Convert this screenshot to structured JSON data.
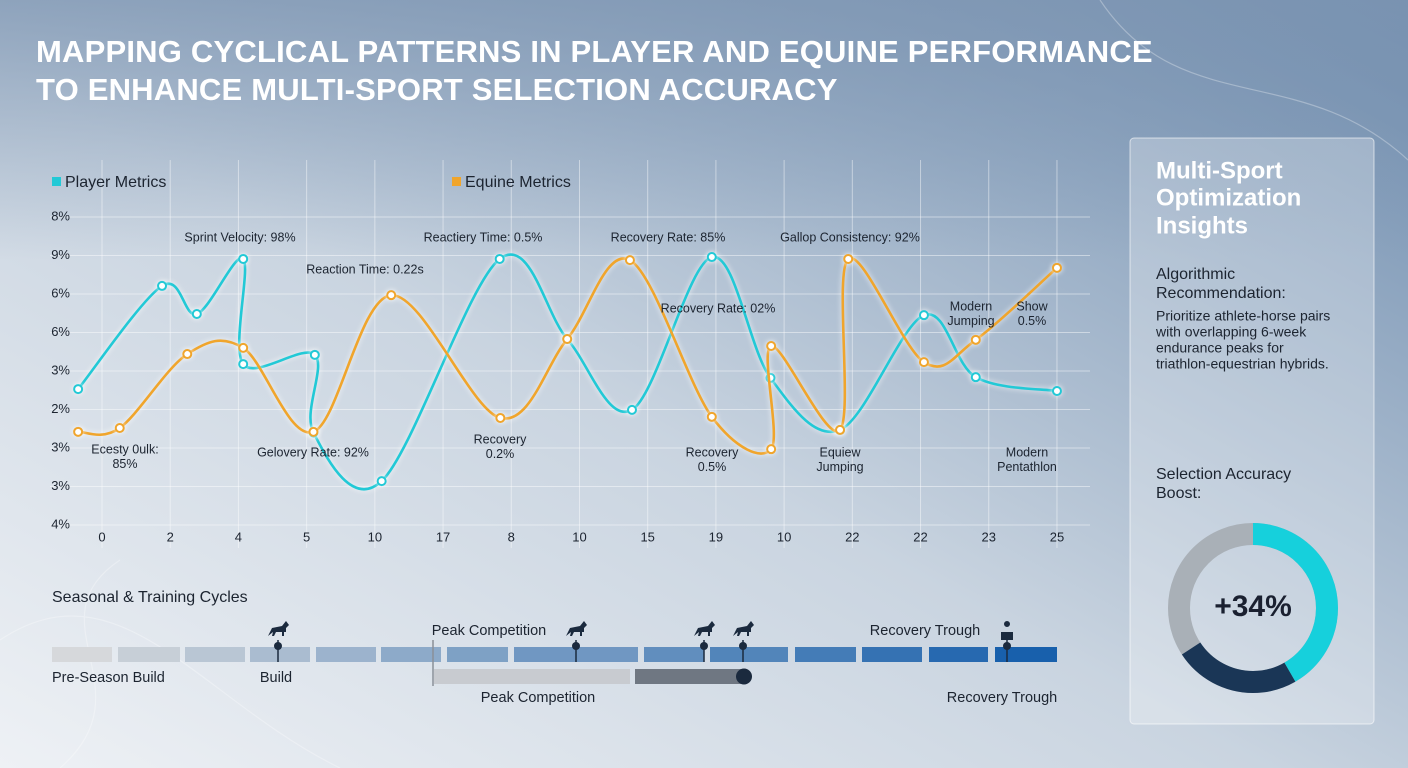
{
  "header": {
    "title_lines": [
      "MAPPING CYCLICAL PATTERNS IN PLAYER AND EQUINE PERFORMANCE",
      "TO ENHANCE MULTI-SPORT SELECTION ACCURACY"
    ]
  },
  "chart_data": {
    "type": "line",
    "grid": true,
    "legend_position": "top",
    "xlim": [
      -0.5,
      14.2
    ],
    "ylim": [
      0,
      8
    ],
    "xticks": [
      0,
      {
        "value": 1,
        "label": "2"
      },
      {
        "value": 2,
        "label": "4"
      },
      {
        "value": 3,
        "label": "5"
      },
      {
        "value": 4,
        "label": "10"
      },
      {
        "value": 5,
        "label": "17"
      },
      {
        "value": 6,
        "label": "8"
      },
      {
        "value": 7,
        "label": "10"
      },
      {
        "value": 8,
        "label": "15"
      },
      {
        "value": 9,
        "label": "19"
      },
      {
        "value": 10,
        "label": "10"
      },
      {
        "value": 11,
        "label": "22"
      },
      {
        "value": 12,
        "label": "22"
      },
      {
        "value": 13,
        "label": "23"
      },
      {
        "value": 14,
        "label": "25"
      }
    ],
    "yticks": [
      {
        "value": 0,
        "label": "4%"
      },
      {
        "value": 1,
        "label": "3%"
      },
      {
        "value": 2,
        "label": "3%"
      },
      {
        "value": 3,
        "label": "2%"
      },
      {
        "value": 4,
        "label": "3%"
      },
      {
        "value": 5,
        "label": "6%"
      },
      {
        "value": 6,
        "label": "6%"
      },
      {
        "value": 7,
        "label": "9%"
      },
      {
        "value": 8,
        "label": "8%"
      }
    ],
    "series": [
      {
        "name": "Player Metrics",
        "color": "#22c9d6",
        "x": [
          -0.35,
          0.88,
          1.39,
          2.07,
          2.07,
          3.12,
          3.1,
          4.1,
          5.83,
          6.82,
          7.77,
          8.94,
          9.8,
          10.82,
          12.05,
          12.81,
          14
        ],
        "values": [
          3.53,
          6.21,
          5.48,
          6.91,
          4.18,
          4.42,
          2.4,
          1.14,
          6.91,
          4.83,
          2.99,
          6.96,
          3.82,
          2.47,
          5.45,
          3.84,
          3.48
        ]
      },
      {
        "name": "Equine Metrics",
        "color": "#f0a52c",
        "x": [
          -0.35,
          0.26,
          1.25,
          2.07,
          3.1,
          4.24,
          5.84,
          6.82,
          7.74,
          8.94,
          9.81,
          9.81,
          10.82,
          10.94,
          12.05,
          12.81,
          14
        ],
        "values": [
          2.42,
          2.52,
          4.44,
          4.6,
          2.42,
          5.97,
          2.78,
          4.83,
          6.88,
          2.81,
          1.97,
          4.65,
          2.47,
          6.91,
          4.23,
          4.81,
          6.68
        ]
      }
    ],
    "annotations": [
      [
        "Sprint Velocity: 98%"
      ],
      [
        "Reaction Time: 0.22s"
      ],
      [
        "Reactiery Time: 0.5%"
      ],
      [
        "Recovery Rate: 85%"
      ],
      [
        "Gallop Consistency: 92%"
      ],
      [
        "Recovery Rate: 02%"
      ],
      [
        "Modern",
        "Jumping"
      ],
      [
        "Show",
        "0.5%"
      ],
      [
        "Ecesty 0ulk:",
        "85%"
      ],
      [
        "Gelovery Rate: 92%"
      ],
      [
        "Recovery",
        "0.2%"
      ],
      [
        "Recovery",
        "0.5%"
      ],
      [
        "Equiew",
        "Jumping"
      ],
      [
        "Modern",
        "Pentathlon"
      ]
    ]
  },
  "timeline": {
    "title": "Seasonal & Training Cycles",
    "labels": [
      "Pre-Season Build",
      "Build",
      "Peak Competition",
      "Recovery Trough",
      "Peak Competition",
      "Recovery Trough"
    ]
  },
  "sidebar": {
    "title_lines": [
      "Multi-Sport",
      "Optimization",
      "Insights"
    ],
    "recommendation_heading": [
      "Algorithmic",
      "Recommendation:"
    ],
    "recommendation_lines": [
      "Prioritize athlete-horse pairs",
      "with overlapping 6-week",
      "endurance peaks for",
      "triathlon-equestrian hybrids."
    ],
    "boost_heading": [
      "Selection Accuracy",
      "Boost:"
    ],
    "boost_value": "+34%"
  }
}
